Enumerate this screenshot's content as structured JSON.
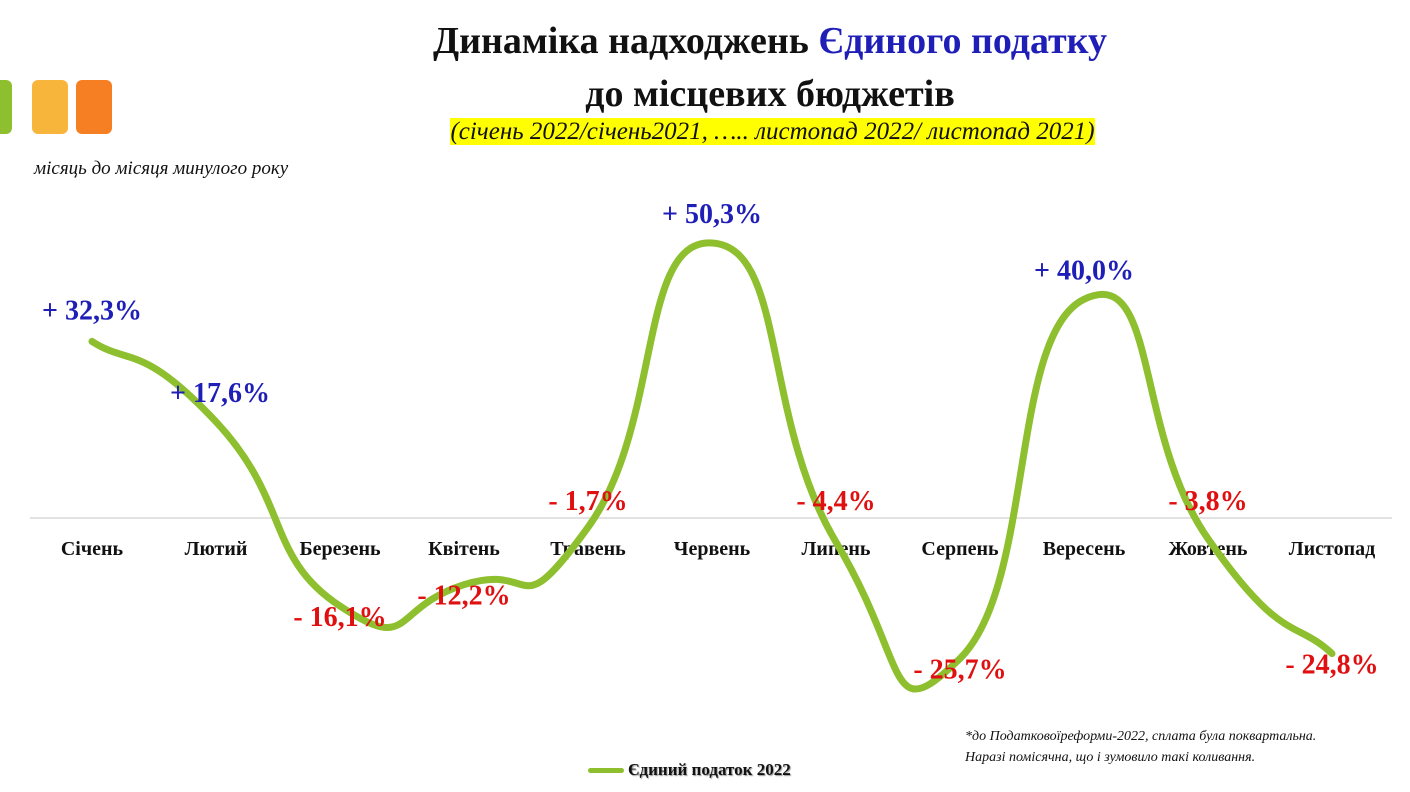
{
  "title_part1": "Динаміка надходжень ",
  "title_part2": "Єдиного податку",
  "title_line2": "до місцевих бюджетів",
  "subtitle": "(січень 2022/січень2021, ….. листопад 2022/ листопад 2021)",
  "note_left": "місяць до місяця минулого року",
  "footnote_line1": "*до Податковоїреформи-2022, сплата була поквартальна.",
  "footnote_line2": "Наразі помісячна, що і зумовило такі коливання.",
  "colors": {
    "series": "#8ebf2e",
    "positive_label": "#1f1fb8",
    "negative_label": "#e01010",
    "highlight": "#ffff00"
  },
  "chart_data": {
    "type": "line",
    "smooth": true,
    "categories": [
      "Січень",
      "Лютий",
      "Березень",
      "Квітень",
      "Травень",
      "Червень",
      "Липень",
      "Серпень",
      "Вересень",
      "Жовтень",
      "Листопад"
    ],
    "series": [
      {
        "name": "Єдиний податок 2022",
        "values": [
          32.3,
          17.6,
          -16.1,
          -12.2,
          -1.7,
          50.3,
          -4.4,
          -25.7,
          40.0,
          -3.8,
          -24.8
        ],
        "labels": [
          "+ 32,3%",
          "+ 17,6%",
          "- 16,1%",
          "- 12,2%",
          "- 1,7%",
          "+ 50,3%",
          "- 4,4%",
          "- 25,7%",
          "+ 40,0%",
          "- 3,8%",
          "- 24,8%"
        ]
      }
    ],
    "ylim": [
      -35,
      55
    ],
    "grid": false,
    "legend": "bottom"
  }
}
